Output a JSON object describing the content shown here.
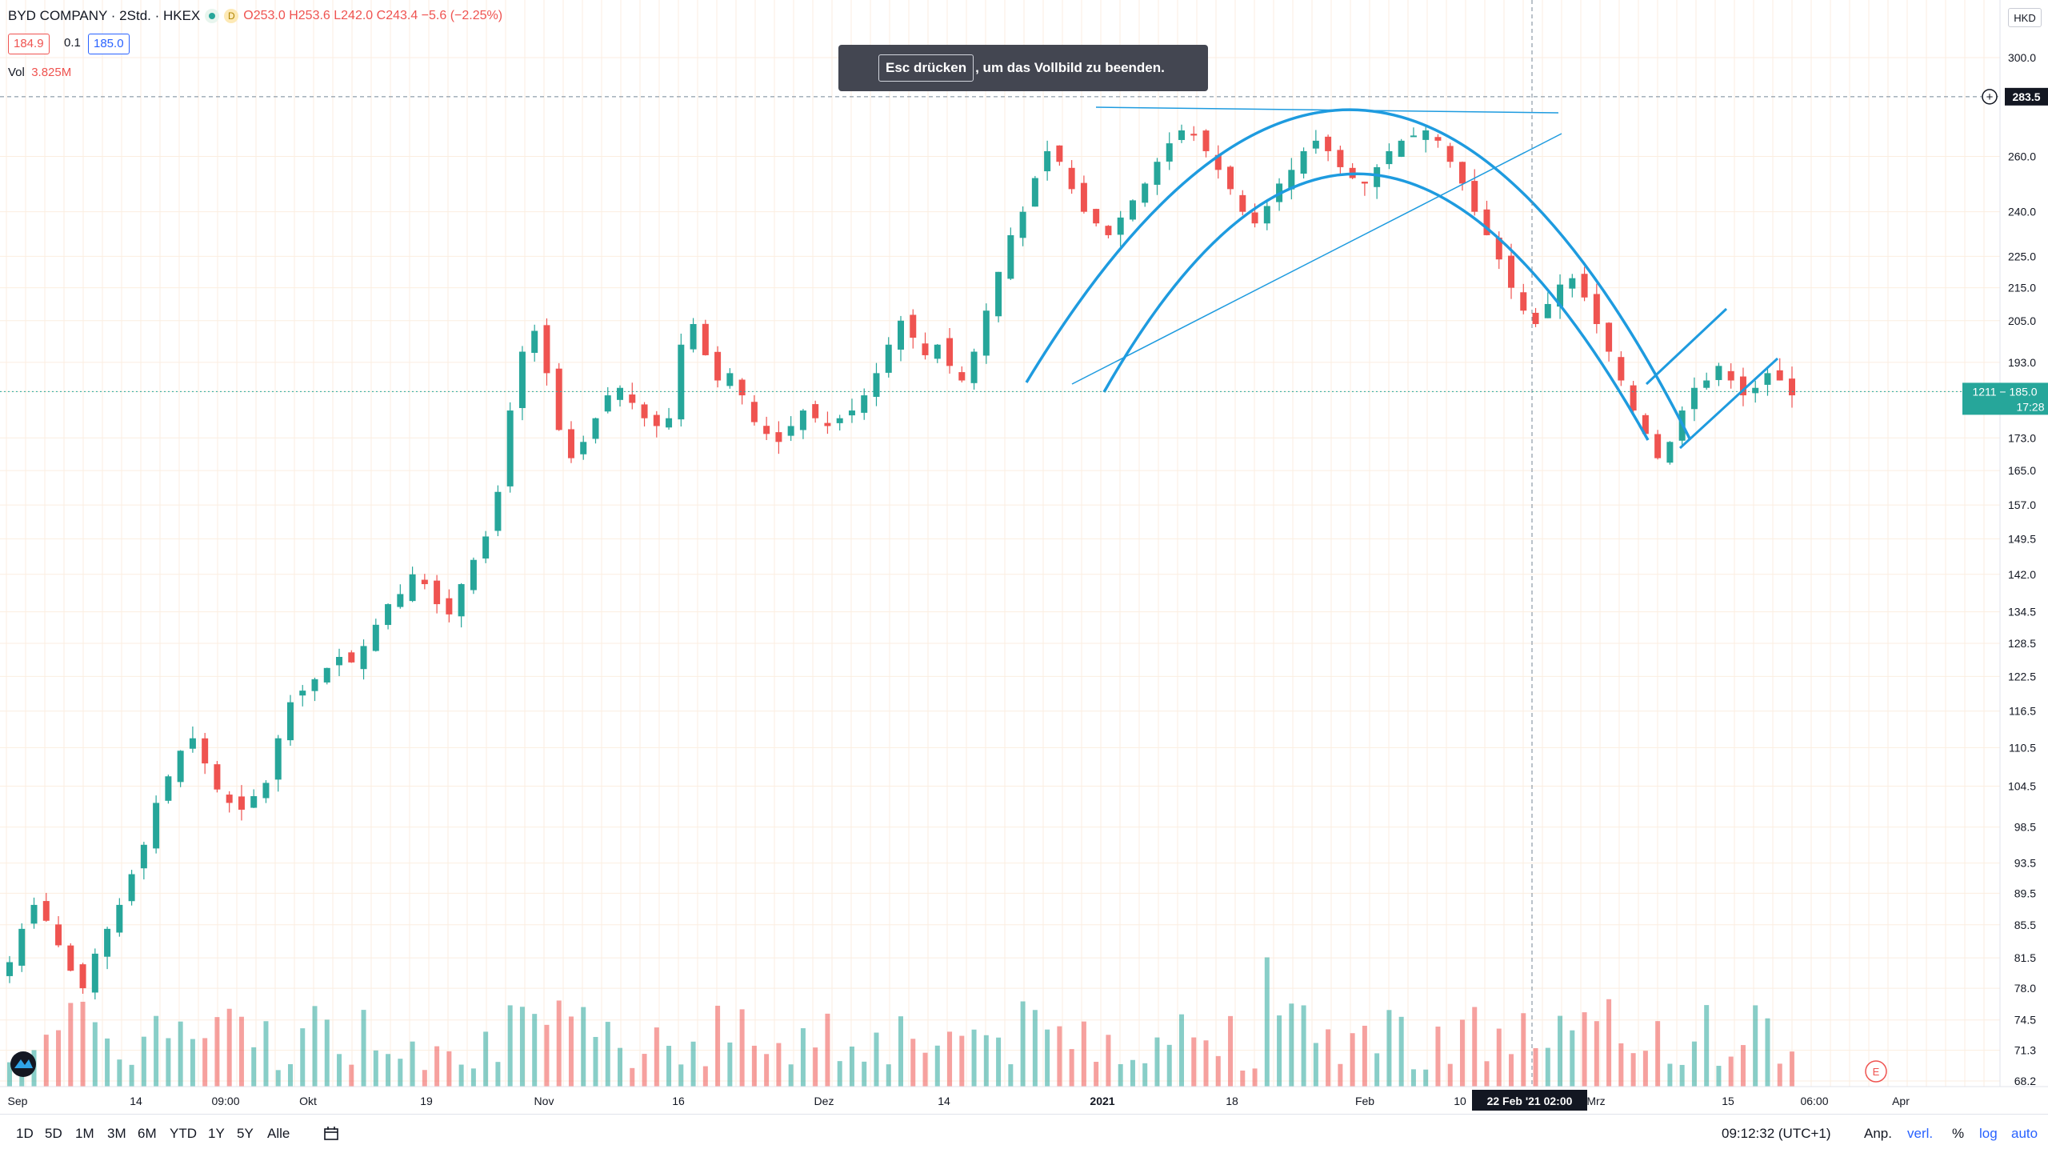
{
  "header": {
    "symbol": "BYD COMPANY · 2Std. · HKEX",
    "interval_badge": "D",
    "ohlc": "O253.0  H253.6  L242.0  C243.4  −5.6 (−2.25%)",
    "bid": "184.9",
    "spread": "0.1",
    "ask": "185.0",
    "volume_label": "Vol",
    "volume_value": "3.825M",
    "currency": "HKD"
  },
  "toast": {
    "key": "Esc drücken",
    "text": ", um das Vollbild zu beenden."
  },
  "price_scale": {
    "ticks": [
      "300.0",
      "283.5",
      "260.0",
      "240.0",
      "225.0",
      "215.0",
      "205.0",
      "193.0",
      "185.0",
      "173.0",
      "165.0",
      "157.0",
      "149.5",
      "142.0",
      "134.5",
      "128.5",
      "122.5",
      "116.5",
      "110.5",
      "104.5",
      "98.5",
      "93.5",
      "89.5",
      "85.5",
      "81.5",
      "78.0",
      "74.5",
      "71.3",
      "68.2"
    ],
    "crosshair_label": "283.5",
    "last_price_label": "1211 − 185.0",
    "countdown_label": "17:28"
  },
  "time_scale": {
    "ticks": [
      {
        "label": "Sep",
        "bold": false
      },
      {
        "label": "14",
        "bold": false
      },
      {
        "label": "09:00",
        "bold": false
      },
      {
        "label": "Okt",
        "bold": false
      },
      {
        "label": "19",
        "bold": false
      },
      {
        "label": "Nov",
        "bold": false
      },
      {
        "label": "16",
        "bold": false
      },
      {
        "label": "Dez",
        "bold": false
      },
      {
        "label": "14",
        "bold": false
      },
      {
        "label": "2021",
        "bold": true
      },
      {
        "label": "18",
        "bold": false
      },
      {
        "label": "Feb",
        "bold": false
      },
      {
        "label": "10",
        "bold": false
      },
      {
        "label": "Mrz",
        "bold": false
      },
      {
        "label": "15",
        "bold": false
      },
      {
        "label": "06:00",
        "bold": false
      },
      {
        "label": "Apr",
        "bold": false
      }
    ],
    "crosshair_label": "22 Feb '21   02:00"
  },
  "colors": {
    "up": "#26a69a",
    "down": "#ef5350",
    "drawing": "#1e9bdf",
    "grid": "#fbeee0"
  },
  "chart_data": {
    "type": "candlestick",
    "title": "BYD COMPANY",
    "interval": "2Std.",
    "scale": "log",
    "ylim": [
      68.2,
      300
    ],
    "xlim": [
      "2020-09-01",
      "2021-04-01"
    ],
    "close": [
      81,
      85,
      88,
      86,
      83,
      80,
      78,
      82,
      85,
      88,
      92,
      96,
      102,
      106,
      110,
      112,
      108,
      104,
      102,
      101,
      103,
      105,
      112,
      118,
      120,
      122,
      124,
      126,
      125,
      128,
      132,
      136,
      138,
      142,
      140,
      136,
      134,
      140,
      145,
      150,
      160,
      180,
      196,
      202,
      190,
      175,
      168,
      172,
      178,
      184,
      186,
      182,
      178,
      176,
      178,
      198,
      204,
      195,
      188,
      190,
      184,
      177,
      174,
      172,
      176,
      180,
      178,
      176,
      178,
      180,
      184,
      190,
      198,
      205,
      200,
      195,
      198,
      192,
      188,
      196,
      208,
      220,
      232,
      240,
      252,
      262,
      258,
      248,
      240,
      236,
      232,
      238,
      244,
      250,
      258,
      265,
      270,
      268,
      262,
      255,
      248,
      240,
      236,
      242,
      250,
      255,
      262,
      266,
      262,
      256,
      252,
      250,
      256,
      262,
      266,
      268,
      270,
      266,
      258,
      250,
      240,
      232,
      224,
      215,
      208,
      204,
      210,
      216,
      218,
      212,
      204,
      196,
      188,
      180,
      174,
      168,
      172,
      180,
      186,
      188,
      192,
      188,
      184,
      186,
      190,
      188,
      184
    ]
  },
  "bottombar": {
    "ranges": [
      "1D",
      "5D",
      "1M",
      "3M",
      "6M",
      "YTD",
      "1Y",
      "5Y",
      "Alle"
    ],
    "clock": "09:12:32 (UTC+1)",
    "options": [
      "Anp.",
      "verl.",
      "%",
      "log",
      "auto"
    ]
  }
}
